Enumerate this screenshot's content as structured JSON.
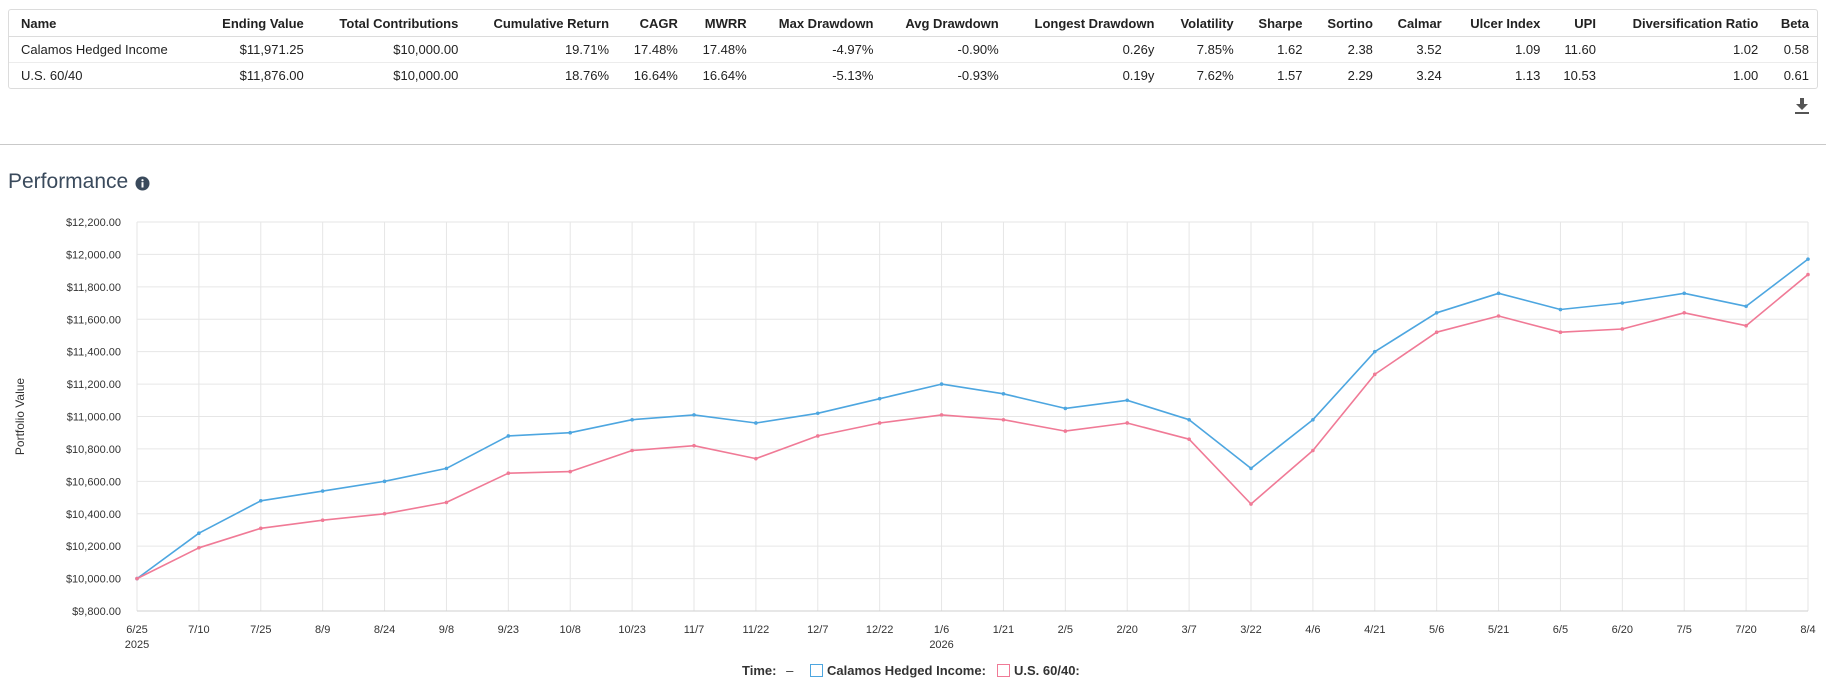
{
  "stats": {
    "columns": [
      "Name",
      "Ending Value",
      "Total Contributions",
      "Cumulative Return",
      "CAGR",
      "MWRR",
      "Max Drawdown",
      "Avg Drawdown",
      "Longest Drawdown",
      "Volatility",
      "Sharpe",
      "Sortino",
      "Calmar",
      "Ulcer Index",
      "UPI",
      "Diversification Ratio",
      "Beta"
    ],
    "rows": [
      [
        "Calamos Hedged Income",
        "$11,971.25",
        "$10,000.00",
        "19.71%",
        "17.48%",
        "17.48%",
        "-4.97%",
        "-0.90%",
        "0.26y",
        "7.85%",
        "1.62",
        "2.38",
        "3.52",
        "1.09",
        "11.60",
        "1.02",
        "0.58"
      ],
      [
        "U.S. 60/40",
        "$11,876.00",
        "$10,000.00",
        "18.76%",
        "16.64%",
        "16.64%",
        "-5.13%",
        "-0.93%",
        "0.19y",
        "7.62%",
        "1.57",
        "2.29",
        "3.24",
        "1.13",
        "10.53",
        "1.00",
        "0.61"
      ]
    ]
  },
  "download_icon": "download-icon",
  "performance": {
    "title": "Performance",
    "info_icon": "info-icon"
  },
  "legend": {
    "time_label": "Time:",
    "time_value": "–",
    "series_labels": [
      "Calamos Hedged Income:",
      "U.S. 60/40:"
    ]
  },
  "chart_data": {
    "type": "line",
    "ylabel": "Portfolio Value",
    "xlabel": "",
    "ylim": [
      9800,
      12200
    ],
    "y_ticks": [
      "$9,800.00",
      "$10,000.00",
      "$10,200.00",
      "$10,400.00",
      "$10,600.00",
      "$10,800.00",
      "$11,000.00",
      "$11,200.00",
      "$11,400.00",
      "$11,600.00",
      "$11,800.00",
      "$12,000.00",
      "$12,200.00"
    ],
    "x_ticks": [
      "6/25",
      "7/10",
      "7/25",
      "8/9",
      "8/24",
      "9/8",
      "9/23",
      "10/8",
      "10/23",
      "11/7",
      "11/22",
      "12/7",
      "12/22",
      "1/6",
      "1/21",
      "2/5",
      "2/20",
      "3/7",
      "3/22",
      "4/6",
      "4/21",
      "5/6",
      "5/21",
      "6/5",
      "6/20",
      "7/5",
      "7/20",
      "8/4"
    ],
    "x_year_labels": [
      {
        "tick": "6/25",
        "label": "2025"
      },
      {
        "tick": "1/6",
        "label": "2026"
      }
    ],
    "grid": true,
    "legend_position": "bottom",
    "series": [
      {
        "name": "Calamos Hedged Income",
        "color": "#4da6e0",
        "points": [
          [
            "6/25",
            10000
          ],
          [
            "7/10",
            10280
          ],
          [
            "7/25",
            10480
          ],
          [
            "8/9",
            10540
          ],
          [
            "8/24",
            10600
          ],
          [
            "9/8",
            10680
          ],
          [
            "9/23",
            10880
          ],
          [
            "10/8",
            10900
          ],
          [
            "10/23",
            10980
          ],
          [
            "11/7",
            11010
          ],
          [
            "11/22",
            10960
          ],
          [
            "12/7",
            11020
          ],
          [
            "12/22",
            11110
          ],
          [
            "1/6",
            11200
          ],
          [
            "1/21",
            11140
          ],
          [
            "2/5",
            11050
          ],
          [
            "2/20",
            11100
          ],
          [
            "3/7",
            10980
          ],
          [
            "3/22",
            10680
          ],
          [
            "4/6",
            10980
          ],
          [
            "4/21",
            11400
          ],
          [
            "5/6",
            11640
          ],
          [
            "5/21",
            11760
          ],
          [
            "6/5",
            11660
          ],
          [
            "6/20",
            11700
          ],
          [
            "7/5",
            11760
          ],
          [
            "7/20",
            11680
          ],
          [
            "8/4",
            11971
          ]
        ]
      },
      {
        "name": "U.S. 60/40",
        "color": "#f07a96",
        "points": [
          [
            "6/25",
            10000
          ],
          [
            "7/10",
            10190
          ],
          [
            "7/25",
            10310
          ],
          [
            "8/9",
            10360
          ],
          [
            "8/24",
            10400
          ],
          [
            "9/8",
            10470
          ],
          [
            "9/23",
            10650
          ],
          [
            "10/8",
            10660
          ],
          [
            "10/23",
            10790
          ],
          [
            "11/7",
            10820
          ],
          [
            "11/22",
            10740
          ],
          [
            "12/7",
            10880
          ],
          [
            "12/22",
            10960
          ],
          [
            "1/6",
            11010
          ],
          [
            "1/21",
            10980
          ],
          [
            "2/5",
            10910
          ],
          [
            "2/20",
            10960
          ],
          [
            "3/7",
            10860
          ],
          [
            "3/22",
            10460
          ],
          [
            "4/6",
            10790
          ],
          [
            "4/21",
            11260
          ],
          [
            "5/6",
            11520
          ],
          [
            "5/21",
            11620
          ],
          [
            "6/5",
            11520
          ],
          [
            "6/20",
            11540
          ],
          [
            "7/5",
            11640
          ],
          [
            "7/20",
            11560
          ],
          [
            "8/4",
            11876
          ]
        ]
      }
    ]
  }
}
